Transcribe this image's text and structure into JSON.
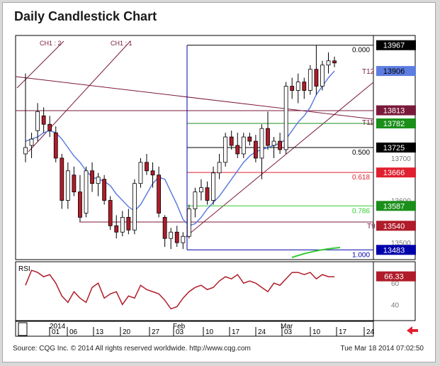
{
  "title": "Daily Candlestick Chart",
  "footer": {
    "source": "Source: CQG Inc. © 2014 All rights reserved worldwide. http://www.cqg.com",
    "timestamp": "Tue Mar 18 2014 07:02:50"
  },
  "colors": {
    "candle_up": "#ffffff",
    "candle_down": "#b01c2a",
    "ma_line": "#5d7de0",
    "fib_lines": "#b01c2a",
    "channel_lines": "#7a1a3a",
    "rsi_line": "#b01c2a",
    "green_line": "#33cc33"
  },
  "chart_data": {
    "type": "candlestick",
    "title": "Daily Candlestick Chart",
    "ylim": [
      13460,
      13990
    ],
    "yticks": [
      13500,
      13600,
      13700
    ],
    "xticks": [
      "01",
      "06",
      "13",
      "20",
      "27",
      "03",
      "10",
      "17",
      "24",
      "03",
      "10",
      "17",
      "24"
    ],
    "month_labels": [
      "2014",
      "Feb",
      "Mar"
    ],
    "candles": [
      {
        "o": 13710,
        "h": 13900,
        "l": 13690,
        "c": 13725
      },
      {
        "o": 13730,
        "h": 13760,
        "l": 13700,
        "c": 13745
      },
      {
        "o": 13765,
        "h": 13830,
        "l": 13740,
        "c": 13810
      },
      {
        "o": 13800,
        "h": 13820,
        "l": 13760,
        "c": 13780
      },
      {
        "o": 13780,
        "h": 13800,
        "l": 13750,
        "c": 13765
      },
      {
        "o": 13760,
        "h": 13775,
        "l": 13690,
        "c": 13700
      },
      {
        "o": 13700,
        "h": 13710,
        "l": 13580,
        "c": 13600
      },
      {
        "o": 13600,
        "h": 13690,
        "l": 13580,
        "c": 13670
      },
      {
        "o": 13660,
        "h": 13680,
        "l": 13610,
        "c": 13620
      },
      {
        "o": 13620,
        "h": 13660,
        "l": 13550,
        "c": 13560
      },
      {
        "o": 13570,
        "h": 13680,
        "l": 13560,
        "c": 13670
      },
      {
        "o": 13670,
        "h": 13690,
        "l": 13620,
        "c": 13640
      },
      {
        "o": 13640,
        "h": 13665,
        "l": 13610,
        "c": 13655
      },
      {
        "o": 13650,
        "h": 13660,
        "l": 13590,
        "c": 13600
      },
      {
        "o": 13600,
        "h": 13610,
        "l": 13530,
        "c": 13540
      },
      {
        "o": 13540,
        "h": 13565,
        "l": 13510,
        "c": 13525
      },
      {
        "o": 13525,
        "h": 13575,
        "l": 13515,
        "c": 13560
      },
      {
        "o": 13560,
        "h": 13580,
        "l": 13520,
        "c": 13530
      },
      {
        "o": 13530,
        "h": 13650,
        "l": 13520,
        "c": 13640
      },
      {
        "o": 13640,
        "h": 13700,
        "l": 13630,
        "c": 13690
      },
      {
        "o": 13690,
        "h": 13710,
        "l": 13660,
        "c": 13670
      },
      {
        "o": 13670,
        "h": 13690,
        "l": 13630,
        "c": 13660
      },
      {
        "o": 13660,
        "h": 13680,
        "l": 13560,
        "c": 13570
      },
      {
        "o": 13560,
        "h": 13565,
        "l": 13490,
        "c": 13510
      },
      {
        "o": 13510,
        "h": 13535,
        "l": 13485,
        "c": 13525
      },
      {
        "o": 13525,
        "h": 13540,
        "l": 13490,
        "c": 13500
      },
      {
        "o": 13500,
        "h": 13525,
        "l": 13485,
        "c": 13515
      },
      {
        "o": 13515,
        "h": 13590,
        "l": 13510,
        "c": 13580
      },
      {
        "o": 13580,
        "h": 13630,
        "l": 13560,
        "c": 13620
      },
      {
        "o": 13620,
        "h": 13650,
        "l": 13600,
        "c": 13630
      },
      {
        "o": 13630,
        "h": 13645,
        "l": 13590,
        "c": 13600
      },
      {
        "o": 13600,
        "h": 13680,
        "l": 13590,
        "c": 13665
      },
      {
        "o": 13665,
        "h": 13710,
        "l": 13650,
        "c": 13690
      },
      {
        "o": 13690,
        "h": 13760,
        "l": 13680,
        "c": 13750
      },
      {
        "o": 13750,
        "h": 13765,
        "l": 13720,
        "c": 13730
      },
      {
        "o": 13730,
        "h": 13760,
        "l": 13700,
        "c": 13710
      },
      {
        "o": 13710,
        "h": 13760,
        "l": 13700,
        "c": 13750
      },
      {
        "o": 13750,
        "h": 13760,
        "l": 13730,
        "c": 13740
      },
      {
        "o": 13740,
        "h": 13755,
        "l": 13690,
        "c": 13700
      },
      {
        "o": 13700,
        "h": 13780,
        "l": 13650,
        "c": 13770
      },
      {
        "o": 13770,
        "h": 13810,
        "l": 13720,
        "c": 13730
      },
      {
        "o": 13730,
        "h": 13750,
        "l": 13700,
        "c": 13740
      },
      {
        "o": 13740,
        "h": 13760,
        "l": 13710,
        "c": 13720
      },
      {
        "o": 13720,
        "h": 13880,
        "l": 13710,
        "c": 13870
      },
      {
        "o": 13870,
        "h": 13890,
        "l": 13840,
        "c": 13860
      },
      {
        "o": 13860,
        "h": 13900,
        "l": 13830,
        "c": 13880
      },
      {
        "o": 13880,
        "h": 13890,
        "l": 13840,
        "c": 13860
      },
      {
        "o": 13860,
        "h": 13920,
        "l": 13850,
        "c": 13910
      },
      {
        "o": 13910,
        "h": 13967,
        "l": 13850,
        "c": 13870
      },
      {
        "o": 13870,
        "h": 13930,
        "l": 13860,
        "c": 13920
      },
      {
        "o": 13920,
        "h": 13950,
        "l": 13900,
        "c": 13930
      },
      {
        "o": 13930,
        "h": 13940,
        "l": 13915,
        "c": 13925
      }
    ],
    "moving_average": [
      13740,
      13745,
      13750,
      13760,
      13765,
      13760,
      13745,
      13725,
      13705,
      13690,
      13670,
      13655,
      13650,
      13645,
      13635,
      13615,
      13600,
      13585,
      13575,
      13590,
      13615,
      13640,
      13655,
      13650,
      13620,
      13590,
      13555,
      13540,
      13545,
      13560,
      13580,
      13595,
      13610,
      13630,
      13650,
      13670,
      13690,
      13705,
      13715,
      13720,
      13725,
      13730,
      13735,
      13745,
      13765,
      13785,
      13800,
      13820,
      13850,
      13870,
      13890,
      13906
    ],
    "fibonacci": [
      {
        "label": "0.000",
        "value": 13967
      },
      {
        "label": "0.500",
        "value": 13725
      },
      {
        "label": "0.618",
        "value": 13666
      },
      {
        "label": "0.786",
        "value": 13587
      },
      {
        "label": "1.000",
        "value": 13483
      }
    ],
    "price_labels": [
      {
        "text": "13967",
        "value": 13967,
        "bg": "#000000",
        "fg": "#ffffff"
      },
      {
        "text": "13906",
        "value": 13906,
        "bg": "#5d7de0",
        "fg": "#000000"
      },
      {
        "text": "13813",
        "value": 13813,
        "bg": "#7a1a3a",
        "fg": "#ffffff"
      },
      {
        "text": "13782",
        "value": 13782,
        "bg": "#1a8f1a",
        "fg": "#ffffff"
      },
      {
        "text": "13725",
        "value": 13725,
        "bg": "#000000",
        "fg": "#ffffff"
      },
      {
        "text": "13666",
        "value": 13666,
        "bg": "#e02030",
        "fg": "#ffffff"
      },
      {
        "text": "13587",
        "value": 13587,
        "bg": "#1a8f1a",
        "fg": "#ffffff"
      },
      {
        "text": "13540",
        "value": 13540,
        "bg": "#b01c2a",
        "fg": "#ffffff"
      },
      {
        "text": "13483",
        "value": 13483,
        "bg": "#0000aa",
        "fg": "#ffffff"
      }
    ],
    "annotations": {
      "ch1_2": "CH1 : 2",
      "ch1_1": "CH1 : 1",
      "t12": "T12",
      "t11": "T11",
      "t9": "T9"
    },
    "rsi": {
      "label": "RSI",
      "value_label": "66.33",
      "yticks": [
        40,
        60
      ],
      "values": [
        58,
        72,
        70,
        66,
        68,
        60,
        48,
        42,
        52,
        46,
        42,
        56,
        60,
        46,
        50,
        52,
        40,
        48,
        46,
        58,
        54,
        52,
        50,
        44,
        36,
        38,
        46,
        52,
        56,
        58,
        54,
        56,
        62,
        66,
        64,
        68,
        60,
        62,
        60,
        56,
        52,
        60,
        58,
        64,
        70,
        70,
        68,
        70,
        64,
        68,
        66,
        66
      ]
    }
  }
}
